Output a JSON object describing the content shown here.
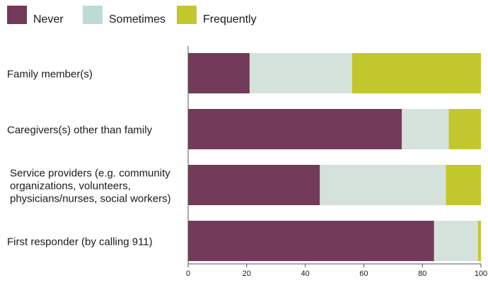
{
  "colors": {
    "never": "#733A59",
    "sometimes": "#D5E2DC",
    "frequently": "#C3C72E",
    "legend_sometimes": "#BCDAD8",
    "axis": "#555555",
    "text": "#1a1a1a"
  },
  "legend": {
    "position": "top-left",
    "items": [
      {
        "label": "Never",
        "color_key": "never"
      },
      {
        "label": "Sometimes",
        "color_key": "legend_sometimes"
      },
      {
        "label": "Frequently",
        "color_key": "frequently"
      }
    ]
  },
  "chart_data": {
    "type": "bar",
    "orientation": "horizontal",
    "stacked": true,
    "title": "",
    "xlabel": "",
    "ylabel": "",
    "xlim": [
      0,
      100
    ],
    "xticks": [
      0,
      20,
      40,
      60,
      80,
      100
    ],
    "grid": false,
    "categories": [
      [
        "Family member(s)"
      ],
      [
        "Caregivers(s) other than family"
      ],
      [
        "Service providers (e.g. community",
        "organizations, volunteers,",
        "physicians/nurses, social workers)"
      ],
      [
        "First responder (by calling 911)"
      ]
    ],
    "series": [
      {
        "name": "Never",
        "color_key": "never",
        "values": [
          21,
          73,
          45,
          84
        ]
      },
      {
        "name": "Sometimes",
        "color_key": "sometimes",
        "values": [
          35,
          16,
          43,
          15
        ]
      },
      {
        "name": "Frequently",
        "color_key": "frequently",
        "values": [
          44,
          11,
          12,
          1
        ]
      }
    ]
  }
}
